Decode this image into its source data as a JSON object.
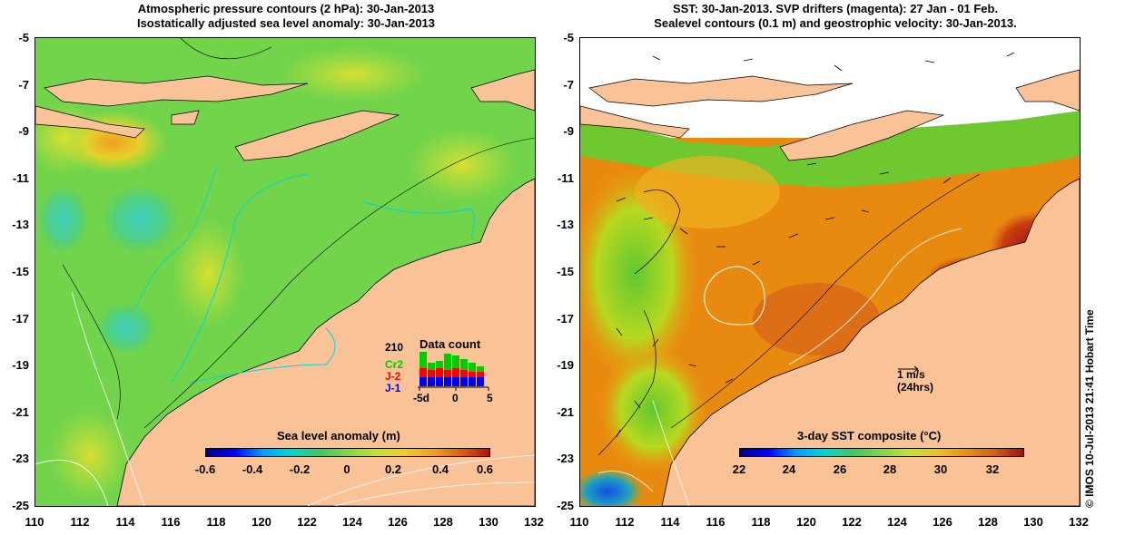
{
  "left_panel": {
    "title_line1": "Atmospheric pressure contours (2 hPa): 30-Jan-2013",
    "title_line2": "Isostatically adjusted sea level anomaly: 30-Jan-2013",
    "colorbar": {
      "title": "Sea level anomaly (m)",
      "ticks": [
        "-0.6",
        "-0.4",
        "-0.2",
        "0",
        "0.2",
        "0.4",
        "0.6"
      ]
    },
    "data_count": {
      "title": "Data count",
      "total": "210",
      "missions": [
        {
          "label": "Cr2",
          "color": "#00cc00"
        },
        {
          "label": "J-2",
          "color": "#ff0000"
        },
        {
          "label": "J-1",
          "color": "#0000ff"
        }
      ],
      "axis_labels": [
        "-5d",
        "0",
        "5"
      ]
    }
  },
  "right_panel": {
    "title_line1": "SST: 30-Jan-2013. SVP drifters (magenta): 27 Jan - 01 Feb.",
    "title_line2": "Sealevel contours (0.1 m) and geostrophic velocity: 30-Jan-2013.",
    "colorbar": {
      "title": "3-day SST composite (°C)",
      "ticks": [
        "22",
        "24",
        "26",
        "28",
        "30",
        "32"
      ]
    },
    "scale_arrow": {
      "label_line1": "1 m/s",
      "label_line2": "(24hrs)"
    }
  },
  "axes": {
    "y_ticks": [
      "-5",
      "-7",
      "-9",
      "-11",
      "-13",
      "-15",
      "-17",
      "-19",
      "-21",
      "-23",
      "-25"
    ],
    "x_ticks": [
      "110",
      "112",
      "114",
      "116",
      "118",
      "120",
      "122",
      "124",
      "126",
      "128",
      "130",
      "132"
    ]
  },
  "footer": "© IMOS 10-Jul-2013 21:41 Hobart Time",
  "colors": {
    "land": "#f9c397",
    "ocean_green": "#7fd84a",
    "sst_orange": "#e88a10",
    "sst_red": "#c23a0a"
  }
}
